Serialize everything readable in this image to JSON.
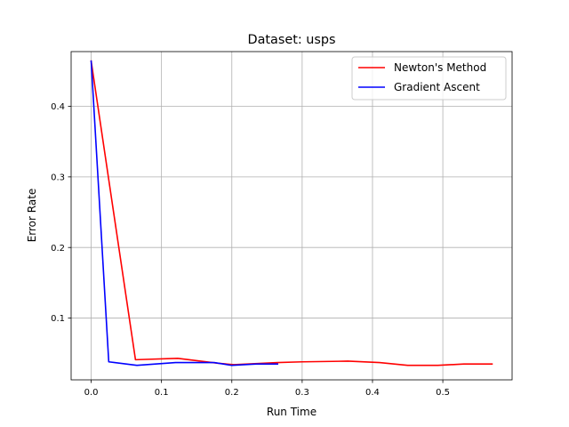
{
  "chart_data": {
    "type": "line",
    "title": "Dataset: usps",
    "xlabel": "Run Time",
    "ylabel": "Error Rate",
    "xlim": [
      -0.0285,
      0.5985
    ],
    "ylim": [
      0.0125,
      0.4775
    ],
    "xticks": [
      0.0,
      0.1,
      0.2,
      0.3,
      0.4,
      0.5
    ],
    "xtick_labels": [
      "0.0",
      "0.1",
      "0.2",
      "0.3",
      "0.4",
      "0.5"
    ],
    "yticks": [
      0.1,
      0.2,
      0.3,
      0.4
    ],
    "ytick_labels": [
      "0.1",
      "0.2",
      "0.3",
      "0.4"
    ],
    "grid": true,
    "legend_position": "top-right",
    "series": [
      {
        "name": "Newton's Method",
        "color": "#ff0000",
        "x": [
          0.0,
          0.063,
          0.123,
          0.18,
          0.203,
          0.265,
          0.3,
          0.365,
          0.41,
          0.45,
          0.493,
          0.53,
          0.57
        ],
        "y": [
          0.464,
          0.041,
          0.043,
          0.036,
          0.034,
          0.037,
          0.038,
          0.039,
          0.037,
          0.033,
          0.033,
          0.035,
          0.035
        ]
      },
      {
        "name": "Gradient Ascent",
        "color": "#0000ff",
        "x": [
          0.0,
          0.025,
          0.065,
          0.12,
          0.175,
          0.2,
          0.235,
          0.265
        ],
        "y": [
          0.464,
          0.038,
          0.033,
          0.037,
          0.037,
          0.033,
          0.035,
          0.035
        ]
      }
    ]
  }
}
